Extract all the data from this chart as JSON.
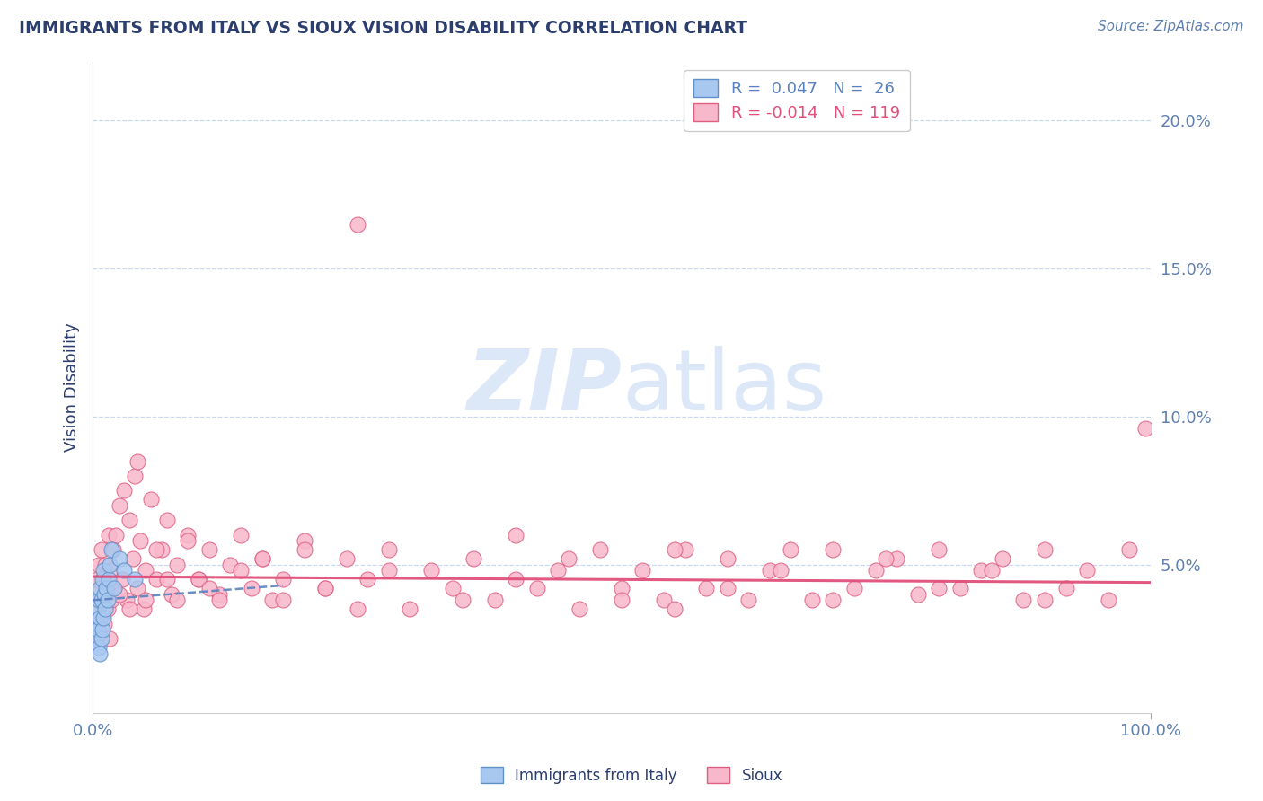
{
  "title": "IMMIGRANTS FROM ITALY VS SIOUX VISION DISABILITY CORRELATION CHART",
  "source_text": "Source: ZipAtlas.com",
  "ylabel": "Vision Disability",
  "legend_label_1": "Immigrants from Italy",
  "legend_label_2": "Sioux",
  "r1": 0.047,
  "n1": 26,
  "r2": -0.014,
  "n2": 119,
  "xlim": [
    0.0,
    1.0
  ],
  "ylim": [
    0.0,
    0.22
  ],
  "yticks": [
    0.0,
    0.05,
    0.1,
    0.15,
    0.2
  ],
  "ytick_labels_right": [
    "",
    "5.0%",
    "10.0%",
    "15.0%",
    "20.0%"
  ],
  "xtick_positions": [
    0.0,
    1.0
  ],
  "xtick_labels": [
    "0.0%",
    "100.0%"
  ],
  "color_blue_fill": "#a8c8f0",
  "color_blue_edge": "#6090c8",
  "color_pink_fill": "#f8b8cc",
  "color_pink_edge": "#e06080",
  "color_blue_line": "#5a82c0",
  "color_pink_line": "#e0507a",
  "title_color": "#2c3e6e",
  "axis_label_color": "#6080b0",
  "grid_color": "#c8d8f0",
  "watermark_color": "#dce8f8",
  "blue_points_x": [
    0.003,
    0.004,
    0.005,
    0.005,
    0.006,
    0.006,
    0.007,
    0.007,
    0.007,
    0.008,
    0.008,
    0.009,
    0.009,
    0.01,
    0.01,
    0.011,
    0.012,
    0.013,
    0.014,
    0.015,
    0.016,
    0.018,
    0.02,
    0.025,
    0.03,
    0.04
  ],
  "blue_points_y": [
    0.025,
    0.03,
    0.028,
    0.035,
    0.022,
    0.038,
    0.02,
    0.032,
    0.042,
    0.025,
    0.038,
    0.028,
    0.045,
    0.032,
    0.048,
    0.04,
    0.035,
    0.042,
    0.038,
    0.045,
    0.05,
    0.055,
    0.042,
    0.052,
    0.048,
    0.045
  ],
  "pink_points_x": [
    0.003,
    0.004,
    0.005,
    0.006,
    0.007,
    0.008,
    0.009,
    0.01,
    0.011,
    0.012,
    0.013,
    0.014,
    0.015,
    0.016,
    0.017,
    0.018,
    0.019,
    0.02,
    0.022,
    0.025,
    0.028,
    0.03,
    0.032,
    0.035,
    0.038,
    0.04,
    0.042,
    0.045,
    0.048,
    0.05,
    0.055,
    0.06,
    0.065,
    0.07,
    0.075,
    0.08,
    0.09,
    0.1,
    0.11,
    0.12,
    0.13,
    0.14,
    0.15,
    0.16,
    0.17,
    0.18,
    0.2,
    0.22,
    0.24,
    0.25,
    0.26,
    0.28,
    0.3,
    0.32,
    0.34,
    0.36,
    0.38,
    0.4,
    0.42,
    0.44,
    0.46,
    0.48,
    0.5,
    0.52,
    0.54,
    0.56,
    0.58,
    0.6,
    0.62,
    0.64,
    0.66,
    0.68,
    0.7,
    0.72,
    0.74,
    0.76,
    0.78,
    0.8,
    0.82,
    0.84,
    0.86,
    0.88,
    0.9,
    0.92,
    0.94,
    0.96,
    0.98,
    0.995,
    0.025,
    0.035,
    0.042,
    0.05,
    0.06,
    0.07,
    0.08,
    0.09,
    0.1,
    0.11,
    0.12,
    0.14,
    0.16,
    0.18,
    0.2,
    0.22,
    0.25,
    0.28,
    0.35,
    0.4,
    0.45,
    0.5,
    0.55,
    0.6,
    0.65,
    0.7,
    0.75,
    0.8,
    0.85,
    0.9,
    0.55
  ],
  "pink_points_y": [
    0.04,
    0.045,
    0.03,
    0.05,
    0.025,
    0.055,
    0.035,
    0.045,
    0.03,
    0.05,
    0.042,
    0.035,
    0.06,
    0.025,
    0.048,
    0.038,
    0.055,
    0.042,
    0.06,
    0.07,
    0.045,
    0.075,
    0.038,
    0.065,
    0.052,
    0.08,
    0.042,
    0.058,
    0.035,
    0.048,
    0.072,
    0.045,
    0.055,
    0.065,
    0.04,
    0.05,
    0.06,
    0.045,
    0.055,
    0.04,
    0.05,
    0.06,
    0.042,
    0.052,
    0.038,
    0.045,
    0.058,
    0.042,
    0.052,
    0.165,
    0.045,
    0.055,
    0.035,
    0.048,
    0.042,
    0.052,
    0.038,
    0.06,
    0.042,
    0.048,
    0.035,
    0.055,
    0.042,
    0.048,
    0.038,
    0.055,
    0.042,
    0.052,
    0.038,
    0.048,
    0.055,
    0.038,
    0.055,
    0.042,
    0.048,
    0.052,
    0.04,
    0.055,
    0.042,
    0.048,
    0.052,
    0.038,
    0.055,
    0.042,
    0.048,
    0.038,
    0.055,
    0.096,
    0.04,
    0.035,
    0.085,
    0.038,
    0.055,
    0.045,
    0.038,
    0.058,
    0.045,
    0.042,
    0.038,
    0.048,
    0.052,
    0.038,
    0.055,
    0.042,
    0.035,
    0.048,
    0.038,
    0.045,
    0.052,
    0.038,
    0.055,
    0.042,
    0.048,
    0.038,
    0.052,
    0.042,
    0.048,
    0.038,
    0.035
  ],
  "blue_trend_x": [
    0.0,
    0.18
  ],
  "blue_trend_y": [
    0.038,
    0.043
  ],
  "pink_trend_x": [
    0.0,
    1.0
  ],
  "pink_trend_y": [
    0.046,
    0.044
  ]
}
